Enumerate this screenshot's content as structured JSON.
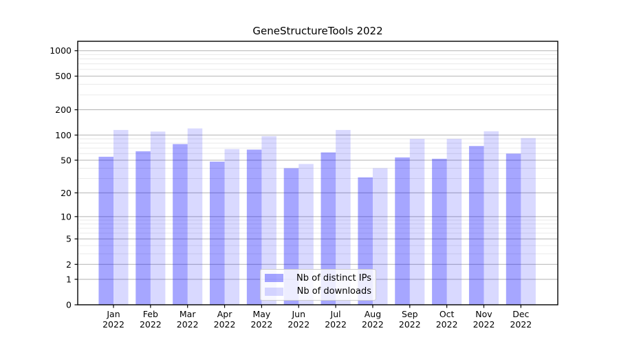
{
  "chart_data": {
    "type": "bar",
    "title": "GeneStructureTools 2022",
    "categories": [
      "Jan",
      "Feb",
      "Mar",
      "Apr",
      "May",
      "Jun",
      "Jul",
      "Aug",
      "Sep",
      "Oct",
      "Nov",
      "Dec"
    ],
    "category_year": "2022",
    "series": [
      {
        "name": "Nb of distinct IPs",
        "color": "rgba(0,0,255,0.35)",
        "values": [
          55,
          64,
          78,
          48,
          67,
          40,
          62,
          31,
          54,
          52,
          74,
          60
        ]
      },
      {
        "name": "Nb of downloads",
        "color": "rgba(0,0,255,0.15)",
        "values": [
          115,
          110,
          120,
          68,
          97,
          45,
          115,
          40,
          90,
          90,
          111,
          92
        ]
      }
    ],
    "xlabel": "",
    "ylabel": "",
    "yscale": "log1p",
    "ylim": [
      0,
      1300
    ],
    "yticks": [
      1000,
      500,
      200,
      100,
      50,
      20,
      10,
      5,
      2,
      1,
      0
    ],
    "minor_yticks": [
      3,
      4,
      6,
      7,
      8,
      9,
      30,
      40,
      60,
      70,
      80,
      90,
      300,
      400,
      600,
      700,
      800,
      900
    ],
    "grid": {
      "major_color": "#b2b2b2",
      "minor_color": "#e7e7e7",
      "visible": true
    },
    "legend_position": "inside-bottom-center",
    "axis_color": "#000000",
    "tick_label_color": "#000000"
  }
}
